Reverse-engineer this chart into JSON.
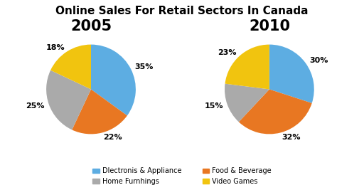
{
  "title": "Online Sales For Retail Sectors In Canada",
  "title_fontsize": 11,
  "title_fontweight": "bold",
  "year_fontsize": 15,
  "year_fontweight": "bold",
  "pie2005": {
    "year": "2005",
    "values": [
      35,
      22,
      25,
      18
    ],
    "labels": [
      "35%",
      "22%",
      "25%",
      "18%"
    ],
    "colors": [
      "#5DADE2",
      "#E87722",
      "#AAAAAA",
      "#F1C40F"
    ],
    "startangle": 90
  },
  "pie2010": {
    "year": "2010",
    "values": [
      30,
      32,
      15,
      23
    ],
    "labels": [
      "30%",
      "32%",
      "15%",
      "23%"
    ],
    "colors": [
      "#5DADE2",
      "#E87722",
      "#AAAAAA",
      "#F1C40F"
    ],
    "startangle": 90
  },
  "legend_items": [
    {
      "label": "Dlectronis & Appliance",
      "color": "#5DADE2"
    },
    {
      "label": "Home Furnhings",
      "color": "#AAAAAA"
    },
    {
      "label": "Food & Beverage",
      "color": "#E87722"
    },
    {
      "label": "Video Games",
      "color": "#F1C40F"
    }
  ],
  "background_color": "#FFFFFF",
  "label_fontsize": 8,
  "label_fontweight": "bold",
  "legend_fontsize": 7
}
